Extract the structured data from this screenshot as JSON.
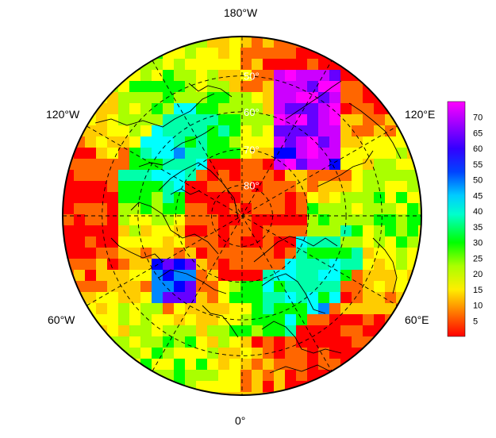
{
  "map": {
    "projection": "north-polar-stereographic",
    "longitude_labels": {
      "top": "180°W",
      "bottom": "0°",
      "upper_left": "120°W",
      "upper_right": "120°E",
      "lower_left": "60°W",
      "lower_right": "60°E"
    },
    "latitude_labels": [
      "50°",
      "60°",
      "70°",
      "80°"
    ],
    "colorbar": {
      "ticks": [
        "70",
        "65",
        "60",
        "55",
        "50",
        "45",
        "40",
        "35",
        "30",
        "25",
        "20",
        "15",
        "10",
        "5"
      ],
      "min": 0,
      "max": 75,
      "colors": [
        "#ff0000",
        "#ff6600",
        "#ffcc00",
        "#ffff00",
        "#aaff00",
        "#00ff00",
        "#00ffaa",
        "#00ffff",
        "#0088ff",
        "#0000ff",
        "#6600ff",
        "#cc00ff",
        "#ff00ff"
      ]
    }
  }
}
